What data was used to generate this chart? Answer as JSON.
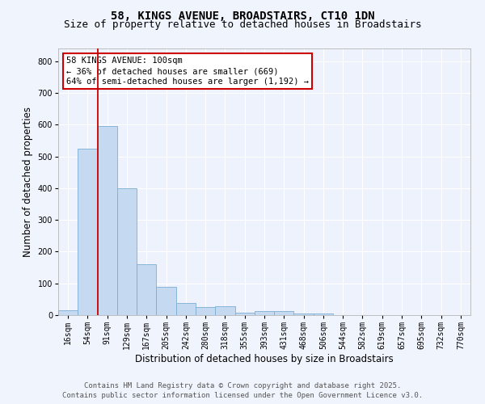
{
  "title_line1": "58, KINGS AVENUE, BROADSTAIRS, CT10 1DN",
  "title_line2": "Size of property relative to detached houses in Broadstairs",
  "xlabel": "Distribution of detached houses by size in Broadstairs",
  "ylabel": "Number of detached properties",
  "categories": [
    "16sqm",
    "54sqm",
    "91sqm",
    "129sqm",
    "167sqm",
    "205sqm",
    "242sqm",
    "280sqm",
    "318sqm",
    "355sqm",
    "393sqm",
    "431sqm",
    "468sqm",
    "506sqm",
    "544sqm",
    "582sqm",
    "619sqm",
    "657sqm",
    "695sqm",
    "732sqm",
    "770sqm"
  ],
  "values": [
    15,
    525,
    595,
    400,
    160,
    90,
    37,
    25,
    27,
    8,
    13,
    13,
    4,
    4,
    0,
    0,
    0,
    0,
    0,
    0,
    0
  ],
  "bar_color": "#c5d9f1",
  "bar_edge_color": "#7bafd4",
  "red_line_x": 1.5,
  "red_line_color": "#cc0000",
  "annotation_text": "58 KINGS AVENUE: 100sqm\n← 36% of detached houses are smaller (669)\n64% of semi-detached houses are larger (1,192) →",
  "annotation_box_facecolor": "#ffffff",
  "annotation_box_edgecolor": "#cc0000",
  "ylim": [
    0,
    840
  ],
  "yticks": [
    0,
    100,
    200,
    300,
    400,
    500,
    600,
    700,
    800
  ],
  "footer_line1": "Contains HM Land Registry data © Crown copyright and database right 2025.",
  "footer_line2": "Contains public sector information licensed under the Open Government Licence v3.0.",
  "background_color": "#f0f4fd",
  "plot_bg_color": "#eef2fc",
  "grid_color": "#ffffff",
  "title_fontsize": 10,
  "subtitle_fontsize": 9,
  "axis_label_fontsize": 8.5,
  "tick_fontsize": 7,
  "annotation_fontsize": 7.5,
  "footer_fontsize": 6.5
}
